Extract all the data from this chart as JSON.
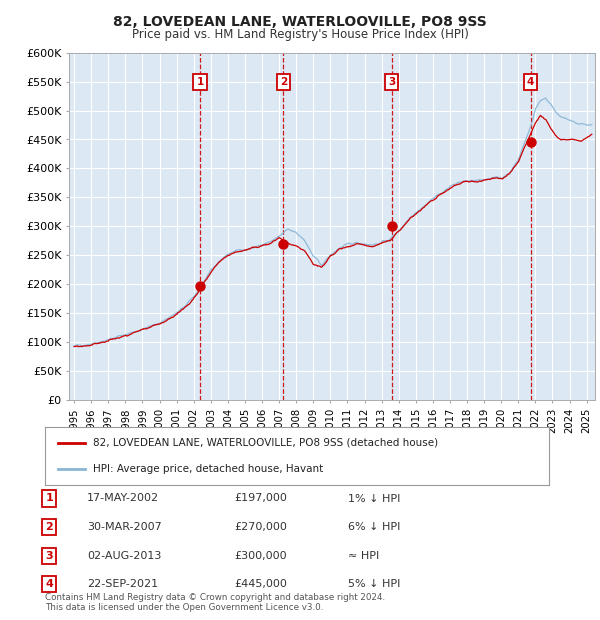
{
  "title": "82, LOVEDEAN LANE, WATERLOOVILLE, PO8 9SS",
  "subtitle": "Price paid vs. HM Land Registry's House Price Index (HPI)",
  "background_color": "#dce9f5",
  "plot_bg_color": "#dce9f5",
  "hpi_color": "#89b4d4",
  "price_color": "#cc0000",
  "grid_color": "#ffffff",
  "ylim": [
    0,
    600000
  ],
  "yticks": [
    0,
    50000,
    100000,
    150000,
    200000,
    250000,
    300000,
    350000,
    400000,
    450000,
    500000,
    550000,
    600000
  ],
  "xlim_start": 1994.7,
  "xlim_end": 2025.5,
  "purchase_dates": [
    2002.37,
    2007.25,
    2013.58,
    2021.72
  ],
  "purchase_prices": [
    197000,
    270000,
    300000,
    445000
  ],
  "purchase_labels": [
    "1",
    "2",
    "3",
    "4"
  ],
  "legend_line1": "82, LOVEDEAN LANE, WATERLOOVILLE, PO8 9SS (detached house)",
  "legend_line2": "HPI: Average price, detached house, Havant",
  "table_data": [
    [
      "1",
      "17-MAY-2002",
      "£197,000",
      "1% ↓ HPI"
    ],
    [
      "2",
      "30-MAR-2007",
      "£270,000",
      "6% ↓ HPI"
    ],
    [
      "3",
      "02-AUG-2013",
      "£300,000",
      "≈ HPI"
    ],
    [
      "4",
      "22-SEP-2021",
      "£445,000",
      "5% ↓ HPI"
    ]
  ],
  "footnote": "Contains HM Land Registry data © Crown copyright and database right 2024.\nThis data is licensed under the Open Government Licence v3.0.",
  "hpi_anchors_x": [
    1995.0,
    1996.0,
    1997.0,
    1998.0,
    1999.0,
    2000.0,
    2001.0,
    2001.5,
    2002.0,
    2002.5,
    2003.0,
    2003.5,
    2004.0,
    2004.5,
    2005.0,
    2005.5,
    2006.0,
    2006.5,
    2007.0,
    2007.5,
    2008.0,
    2008.5,
    2009.0,
    2009.5,
    2010.0,
    2010.5,
    2011.0,
    2011.5,
    2012.0,
    2012.5,
    2013.0,
    2013.5,
    2014.0,
    2014.5,
    2015.0,
    2015.5,
    2016.0,
    2016.5,
    2017.0,
    2017.5,
    2018.0,
    2018.5,
    2019.0,
    2019.5,
    2020.0,
    2020.5,
    2021.0,
    2021.5,
    2021.8,
    2022.0,
    2022.3,
    2022.6,
    2022.9,
    2023.2,
    2023.6,
    2024.0,
    2024.4,
    2024.8,
    2025.3
  ],
  "hpi_anchors_y": [
    93000,
    97000,
    104000,
    113000,
    122000,
    133000,
    150000,
    162000,
    178000,
    200000,
    222000,
    240000,
    252000,
    258000,
    260000,
    263000,
    268000,
    273000,
    282000,
    295000,
    290000,
    275000,
    248000,
    233000,
    250000,
    262000,
    268000,
    272000,
    270000,
    268000,
    272000,
    278000,
    292000,
    310000,
    325000,
    335000,
    348000,
    358000,
    368000,
    376000,
    378000,
    378000,
    381000,
    385000,
    383000,
    393000,
    415000,
    455000,
    480000,
    502000,
    518000,
    522000,
    510000,
    498000,
    488000,
    482000,
    478000,
    476000,
    475000
  ],
  "price_anchors_x": [
    1995.0,
    1996.0,
    1997.0,
    1998.0,
    1999.0,
    2000.0,
    2001.0,
    2001.5,
    2002.0,
    2002.5,
    2003.0,
    2003.5,
    2004.0,
    2004.5,
    2005.0,
    2005.5,
    2006.0,
    2006.5,
    2007.0,
    2007.5,
    2008.0,
    2008.5,
    2009.0,
    2009.5,
    2010.0,
    2010.5,
    2011.0,
    2011.5,
    2012.0,
    2012.5,
    2013.0,
    2013.5,
    2014.0,
    2014.5,
    2015.0,
    2015.5,
    2016.0,
    2016.5,
    2017.0,
    2017.5,
    2018.0,
    2018.5,
    2019.0,
    2019.5,
    2020.0,
    2020.5,
    2021.0,
    2021.5,
    2021.75,
    2022.0,
    2022.3,
    2022.6,
    2022.9,
    2023.2,
    2023.5,
    2023.9,
    2024.3,
    2024.7,
    2025.3
  ],
  "price_anchors_y": [
    91000,
    95000,
    102000,
    111000,
    120000,
    131000,
    148000,
    160000,
    176000,
    198000,
    220000,
    238000,
    250000,
    256000,
    258000,
    261000,
    267000,
    271000,
    281000,
    270000,
    265000,
    258000,
    235000,
    228000,
    248000,
    260000,
    265000,
    269000,
    268000,
    265000,
    270000,
    276000,
    290000,
    308000,
    322000,
    333000,
    346000,
    356000,
    366000,
    374000,
    376000,
    376000,
    379000,
    383000,
    381000,
    391000,
    413000,
    445000,
    462000,
    480000,
    492000,
    482000,
    468000,
    456000,
    450000,
    450000,
    448000,
    446000,
    460000
  ]
}
